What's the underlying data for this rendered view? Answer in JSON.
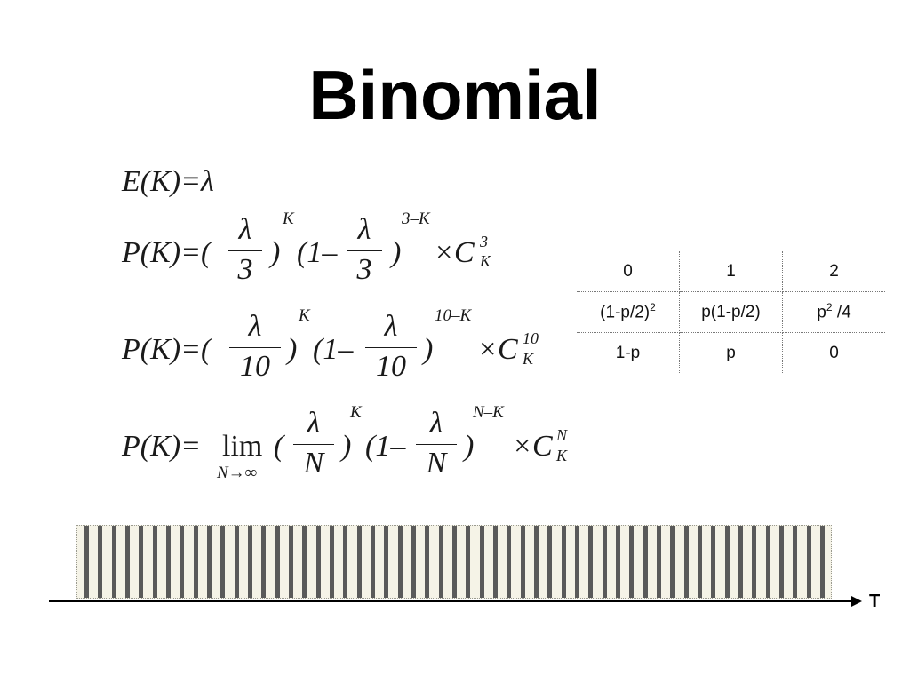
{
  "slide": {
    "title": "Binomial"
  },
  "formulas": {
    "expectation": "E(K)=λ",
    "lhs": "P(K)=(",
    "lambda": "λ",
    "one_minus": "(1–",
    "close_paren": ")",
    "times_c": "×C",
    "sup_k": "K",
    "sub_k": "K",
    "f3": {
      "den": "3",
      "exp_right": "3–K",
      "c_sup": "3"
    },
    "f10": {
      "den": "10",
      "exp_right": "10–K",
      "c_sup": "10"
    },
    "flim": {
      "lhs": "P(K)=",
      "lim": "lim",
      "lim_sub": "N→∞",
      "open": "(",
      "den": "N",
      "exp_right": "N–K",
      "c_sup": "N"
    }
  },
  "table": {
    "rows": [
      [
        "0",
        "1",
        "2"
      ],
      [
        "(1-p/2)2",
        "p(1-p/2)",
        "p2 /4"
      ],
      [
        "1-p",
        "p",
        "0"
      ]
    ],
    "row2_parts": {
      "c0_base": "(1-p/2)",
      "c0_sup": "2",
      "c2_base": "p",
      "c2_sup": "2",
      "c2_tail": " /4"
    }
  },
  "timeline": {
    "axis_label": "T",
    "tick_count": 55,
    "tick_color": "#5a5a5a",
    "strip_color": "#f5f3e7"
  }
}
